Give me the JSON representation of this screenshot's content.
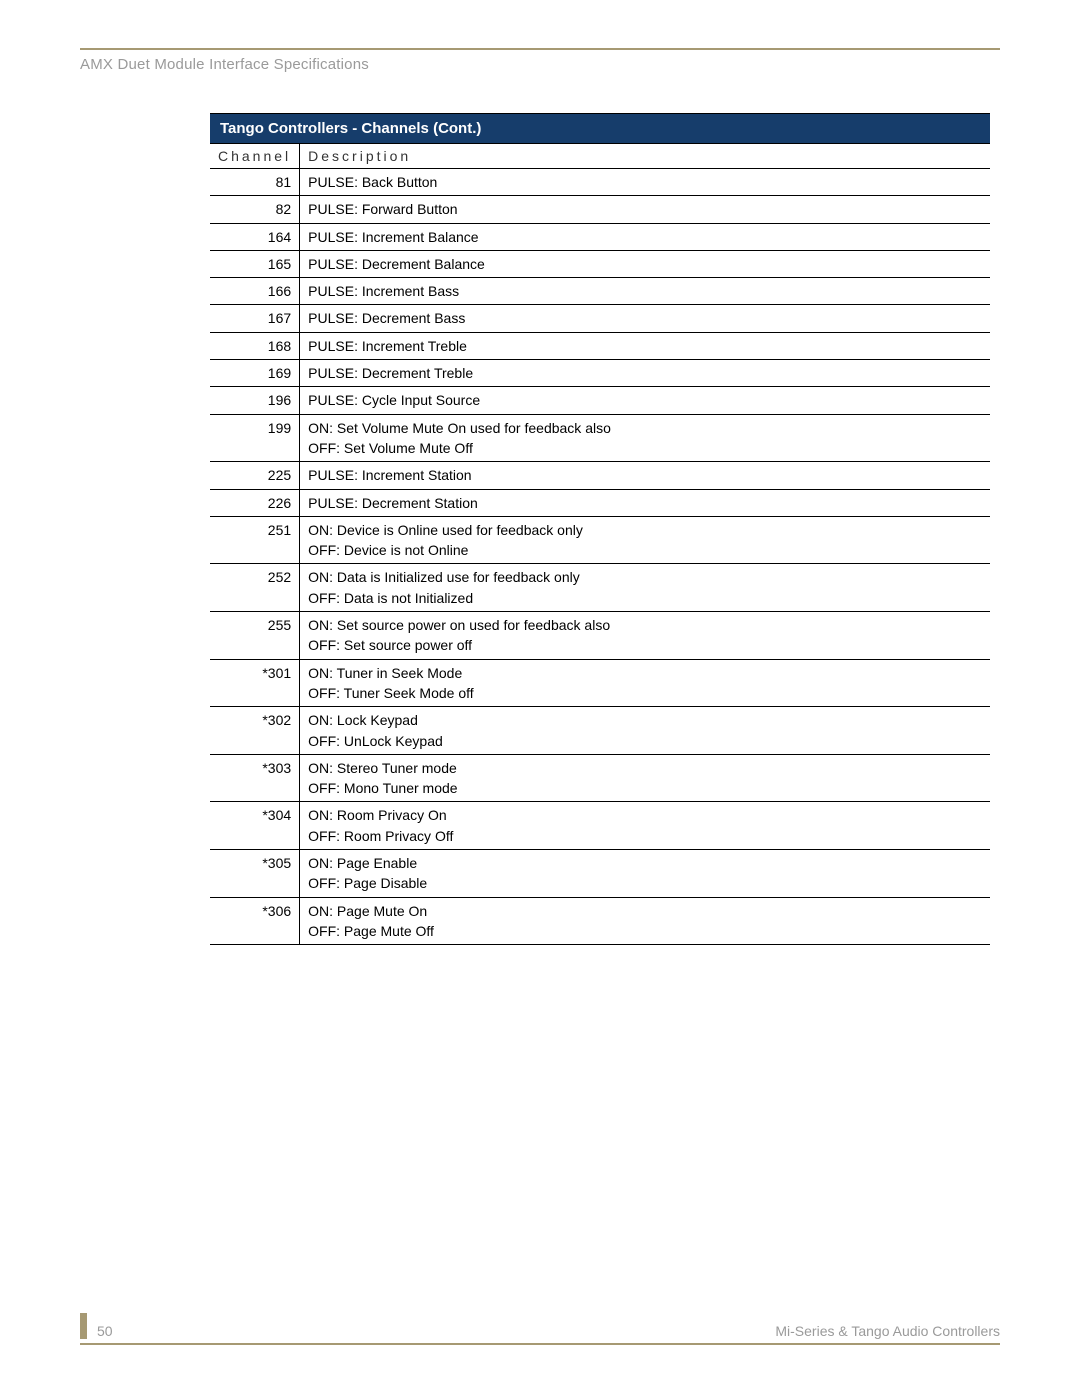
{
  "header": {
    "title": "AMX Duet Module Interface Specifications"
  },
  "table": {
    "title": "Tango Controllers - Channels (Cont.)",
    "columns": {
      "channel": "Channel",
      "description": "Description"
    },
    "title_bg": "#163d6b",
    "title_fg": "#ffffff",
    "border_color": "#000000",
    "font_size": 14,
    "rows": [
      {
        "channel": "81",
        "description": [
          "PULSE: Back Button"
        ]
      },
      {
        "channel": "82",
        "description": [
          "PULSE: Forward Button"
        ]
      },
      {
        "channel": "164",
        "description": [
          "PULSE: Increment Balance"
        ]
      },
      {
        "channel": "165",
        "description": [
          "PULSE: Decrement Balance"
        ]
      },
      {
        "channel": "166",
        "description": [
          "PULSE: Increment Bass"
        ]
      },
      {
        "channel": "167",
        "description": [
          "PULSE: Decrement Bass"
        ]
      },
      {
        "channel": "168",
        "description": [
          "PULSE: Increment Treble"
        ]
      },
      {
        "channel": "169",
        "description": [
          "PULSE: Decrement Treble"
        ]
      },
      {
        "channel": "196",
        "description": [
          "PULSE: Cycle Input Source"
        ]
      },
      {
        "channel": "199",
        "description": [
          "ON: Set Volume Mute On   used for feedback also",
          "OFF: Set Volume Mute Off"
        ]
      },
      {
        "channel": "225",
        "description": [
          "PULSE: Increment Station"
        ]
      },
      {
        "channel": "226",
        "description": [
          "PULSE: Decrement Station"
        ]
      },
      {
        "channel": "251",
        "description": [
          "ON: Device is Online   used for feedback only",
          "OFF: Device is not Online"
        ]
      },
      {
        "channel": "252",
        "description": [
          "ON: Data is Initialized   use for feedback only",
          "OFF: Data is not Initialized"
        ]
      },
      {
        "channel": "255",
        "description": [
          "ON: Set source power on   used for feedback also",
          "OFF: Set source power off"
        ]
      },
      {
        "channel": "*301",
        "description": [
          "ON: Tuner in Seek Mode",
          "OFF: Tuner Seek Mode off"
        ]
      },
      {
        "channel": "*302",
        "description": [
          "ON: Lock Keypad",
          "OFF: UnLock Keypad"
        ]
      },
      {
        "channel": "*303",
        "description": [
          "ON: Stereo Tuner mode",
          "OFF: Mono Tuner mode"
        ]
      },
      {
        "channel": "*304",
        "description": [
          "ON: Room Privacy On",
          "OFF: Room Privacy Off"
        ]
      },
      {
        "channel": "*305",
        "description": [
          "ON: Page Enable",
          "OFF: Page Disable"
        ]
      },
      {
        "channel": "*306",
        "description": [
          "ON: Page Mute On",
          "OFF: Page Mute Off"
        ]
      }
    ]
  },
  "footer": {
    "page_number": "50",
    "right_text": "Mi-Series & Tango Audio Controllers",
    "accent_color": "#a69973"
  }
}
